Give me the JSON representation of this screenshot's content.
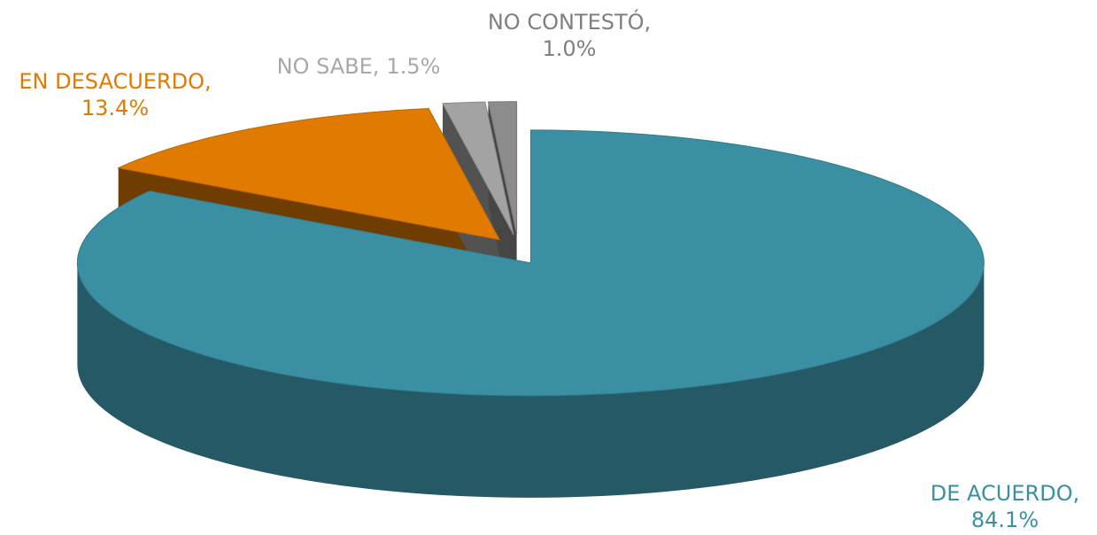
{
  "chart_data": {
    "type": "pie3d",
    "categories": [
      "DE ACUERDO,",
      "EN DESACUERDO,",
      "NO SABE,",
      "NO CONTESTÓ,"
    ],
    "values": [
      84.1,
      13.4,
      1.5,
      1.0
    ],
    "value_labels": [
      "84.1%",
      "13.4%",
      "1.5%",
      "1.0%"
    ],
    "colors": [
      "#3a8fa3",
      "#e07a00",
      "#a3a3a3",
      "#8c8c8c"
    ],
    "label_colors": [
      "#3a8fa3",
      "#e07a00",
      "#a8a8a8",
      "#7f7f7f"
    ]
  }
}
